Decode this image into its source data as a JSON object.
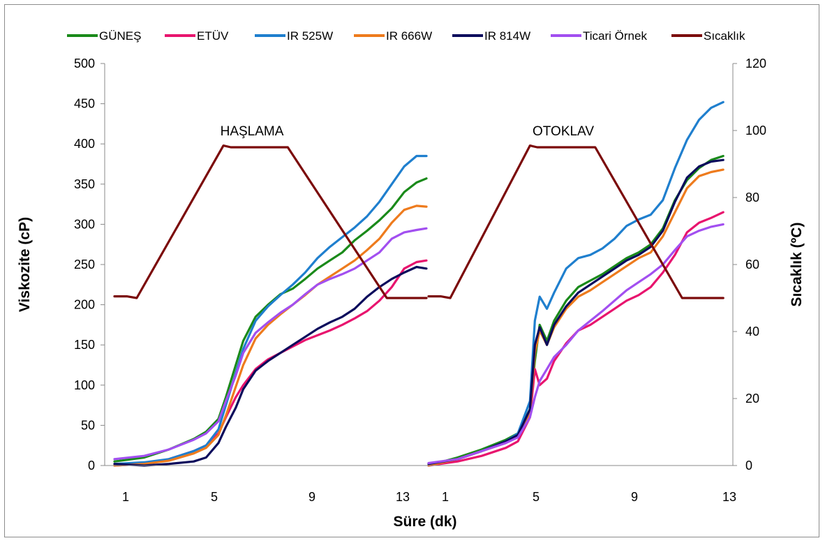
{
  "chart_data": {
    "type": "line",
    "xlabel": "Süre (dk)",
    "ylabel": "Viskozite (cP)",
    "y2label": "Sıcaklık (ºC)",
    "ylim": [
      0,
      500
    ],
    "y2lim": [
      0,
      120
    ],
    "yticks": [
      "0",
      "50",
      "100",
      "150",
      "200",
      "250",
      "300",
      "350",
      "400",
      "450",
      "500"
    ],
    "y2ticks": [
      "0",
      "20",
      "40",
      "60",
      "80",
      "100",
      "120"
    ],
    "xticks_left": [
      "1",
      "5",
      "9",
      "13"
    ],
    "xticks_right": [
      "1",
      "5",
      "9",
      "13"
    ],
    "annotations": [
      "HAŞLAMA",
      "OTOKLAV"
    ],
    "legend_position": "top",
    "panels": [
      {
        "name": "HAŞLAMA",
        "xrange": [
          0.8,
          13.4
        ],
        "series": [
          {
            "name": "GÜNEŞ",
            "color": "#1a8a1a",
            "axis": "left",
            "x": [
              0.8,
              2,
              3,
              4,
              4.5,
              5,
              5.3,
              5.7,
              6,
              6.5,
              7,
              7.5,
              8,
              8.5,
              9,
              9.5,
              10,
              10.5,
              11,
              11.5,
              12,
              12.5,
              13,
              13.4
            ],
            "y": [
              5,
              10,
              20,
              33,
              42,
              58,
              85,
              125,
              155,
              185,
              200,
              213,
              220,
              232,
              245,
              255,
              265,
              280,
              292,
              305,
              320,
              340,
              352,
              357
            ]
          },
          {
            "name": "ETÜV",
            "color": "#e8146e",
            "axis": "left",
            "x": [
              0.8,
              2,
              3,
              4,
              4.5,
              5,
              5.3,
              5.7,
              6,
              6.5,
              7,
              7.5,
              8,
              8.5,
              9,
              9.5,
              10,
              10.5,
              11,
              11.5,
              12,
              12.5,
              13,
              13.4
            ],
            "y": [
              0,
              2,
              8,
              18,
              25,
              40,
              60,
              85,
              100,
              120,
              132,
              140,
              148,
              156,
              162,
              168,
              175,
              183,
              192,
              205,
              222,
              245,
              253,
              255
            ]
          },
          {
            "name": "IR 525W",
            "color": "#1f7fce",
            "axis": "left",
            "x": [
              0.8,
              2,
              3,
              4,
              4.5,
              5,
              5.3,
              5.7,
              6,
              6.5,
              7,
              7.5,
              8,
              8.5,
              9,
              9.5,
              10,
              10.5,
              11,
              11.5,
              12,
              12.5,
              13,
              13.4
            ],
            "y": [
              2,
              4,
              8,
              18,
              25,
              45,
              75,
              115,
              145,
              180,
              198,
              212,
              225,
              240,
              258,
              272,
              284,
              296,
              310,
              328,
              350,
              372,
              385,
              385
            ]
          },
          {
            "name": "IR 666W",
            "color": "#ee7b1d",
            "axis": "left",
            "x": [
              0.8,
              2,
              3,
              4,
              4.5,
              5,
              5.3,
              5.7,
              6,
              6.5,
              7,
              7.5,
              8,
              8.5,
              9,
              9.5,
              10,
              10.5,
              11,
              11.5,
              12,
              12.5,
              13,
              13.4
            ],
            "y": [
              0,
              2,
              6,
              15,
              22,
              38,
              62,
              98,
              125,
              158,
              175,
              188,
              200,
              212,
              225,
              235,
              245,
              255,
              268,
              282,
              302,
              318,
              323,
              322
            ]
          },
          {
            "name": "IR 814W",
            "color": "#0b0b5c",
            "axis": "left",
            "x": [
              0.8,
              2,
              3,
              4,
              4.5,
              5,
              5.3,
              5.7,
              6,
              6.5,
              7,
              7.5,
              8,
              8.5,
              9,
              9.5,
              10,
              10.5,
              11,
              11.5,
              12,
              12.5,
              13,
              13.4
            ],
            "y": [
              2,
              0,
              2,
              5,
              10,
              28,
              48,
              72,
              95,
              118,
              130,
              140,
              150,
              160,
              170,
              178,
              185,
              195,
              210,
              222,
              232,
              240,
              247,
              245
            ]
          },
          {
            "name": "Ticari Örnek",
            "color": "#a24ff0",
            "axis": "left",
            "x": [
              0.8,
              2,
              3,
              4,
              4.5,
              5,
              5.3,
              5.7,
              6,
              6.5,
              7,
              7.5,
              8,
              8.5,
              9,
              9.5,
              10,
              10.5,
              11,
              11.5,
              12,
              12.5,
              13,
              13.4
            ],
            "y": [
              8,
              12,
              20,
              32,
              40,
              55,
              80,
              112,
              140,
              165,
              178,
              190,
              200,
              213,
              225,
              232,
              238,
              245,
              255,
              265,
              282,
              290,
              293,
              295
            ]
          },
          {
            "name": "Sıcaklık",
            "color": "#7b0a0a",
            "axis": "right",
            "x": [
              0.8,
              1.3,
              1.7,
              5.2,
              5.5,
              7.8,
              11.8,
              13.4
            ],
            "y": [
              50.5,
              50.5,
              50,
              95.5,
              95,
              95,
              50,
              50
            ]
          }
        ]
      },
      {
        "name": "OTOKLAV",
        "xrange": [
          0.8,
          13.4
        ],
        "series": [
          {
            "name": "GÜNEŞ",
            "color": "#1a8a1a",
            "axis": "left",
            "x": [
              0.8,
              2,
              3,
              4,
              4.5,
              5,
              5.2,
              5.4,
              5.7,
              6,
              6.5,
              7,
              7.5,
              8,
              8.5,
              9,
              9.5,
              10,
              10.5,
              11,
              11.5,
              12,
              12.5,
              13
            ],
            "y": [
              0,
              10,
              20,
              32,
              40,
              70,
              130,
              175,
              155,
              180,
              205,
              222,
              230,
              238,
              248,
              258,
              265,
              275,
              295,
              330,
              355,
              370,
              380,
              385
            ]
          },
          {
            "name": "ETÜV",
            "color": "#e8146e",
            "axis": "left",
            "x": [
              0.8,
              2,
              3,
              4,
              4.5,
              5,
              5.2,
              5.4,
              5.7,
              6,
              6.5,
              7,
              7.5,
              8,
              8.5,
              9,
              9.5,
              10,
              10.5,
              11,
              11.5,
              12,
              12.5,
              13
            ],
            "y": [
              0,
              5,
              12,
              22,
              30,
              60,
              120,
              100,
              108,
              130,
              152,
              168,
              175,
              185,
              195,
              205,
              212,
              222,
              240,
              262,
              290,
              302,
              308,
              315
            ]
          },
          {
            "name": "IR 525W",
            "color": "#1f7fce",
            "axis": "left",
            "x": [
              0.8,
              2,
              3,
              4,
              4.5,
              5,
              5.2,
              5.4,
              5.7,
              6,
              6.5,
              7,
              7.5,
              8,
              8.5,
              9,
              9.5,
              10,
              10.5,
              11,
              11.5,
              12,
              12.5,
              13
            ],
            "y": [
              2,
              8,
              18,
              30,
              40,
              80,
              180,
              210,
              195,
              215,
              245,
              258,
              262,
              270,
              282,
              298,
              306,
              312,
              330,
              370,
              405,
              430,
              445,
              452
            ]
          },
          {
            "name": "IR 666W",
            "color": "#ee7b1d",
            "axis": "left",
            "x": [
              0.8,
              2,
              3,
              4,
              4.5,
              5,
              5.2,
              5.4,
              5.7,
              6,
              6.5,
              7,
              7.5,
              8,
              8.5,
              9,
              9.5,
              10,
              10.5,
              11,
              11.5,
              12,
              12.5,
              13
            ],
            "y": [
              0,
              8,
              18,
              28,
              36,
              65,
              140,
              168,
              150,
              172,
              195,
              210,
              218,
              228,
              238,
              248,
              258,
              265,
              285,
              315,
              345,
              360,
              365,
              368
            ]
          },
          {
            "name": "IR 814W",
            "color": "#0b0b5c",
            "axis": "left",
            "x": [
              0.8,
              2,
              3,
              4,
              4.5,
              5,
              5.2,
              5.4,
              5.7,
              6,
              6.5,
              7,
              7.5,
              8,
              8.5,
              9,
              9.5,
              10,
              10.5,
              11,
              11.5,
              12,
              12.5,
              13
            ],
            "y": [
              2,
              8,
              18,
              30,
              38,
              70,
              150,
              172,
              150,
              175,
              198,
              215,
              225,
              235,
              245,
              255,
              262,
              272,
              292,
              328,
              358,
              372,
              378,
              380
            ]
          },
          {
            "name": "Ticari Örnek",
            "color": "#a24ff0",
            "axis": "left",
            "x": [
              0.8,
              2,
              3,
              4,
              4.5,
              5,
              5.2,
              5.4,
              5.7,
              6,
              6.5,
              7,
              7.5,
              8,
              8.5,
              9,
              9.5,
              10,
              10.5,
              11,
              11.5,
              12,
              12.5,
              13
            ],
            "y": [
              3,
              8,
              18,
              28,
              35,
              60,
              85,
              105,
              120,
              135,
              150,
              168,
              180,
              192,
              205,
              218,
              228,
              238,
              250,
              268,
              285,
              292,
              297,
              300
            ]
          },
          {
            "name": "Sıcaklık",
            "color": "#7b0a0a",
            "axis": "right",
            "x": [
              0.8,
              1.3,
              1.7,
              5.0,
              5.3,
              7.7,
              11.3,
              13
            ],
            "y": [
              50.5,
              50.5,
              50,
              95.5,
              95,
              95,
              50,
              50
            ]
          }
        ]
      }
    ]
  }
}
